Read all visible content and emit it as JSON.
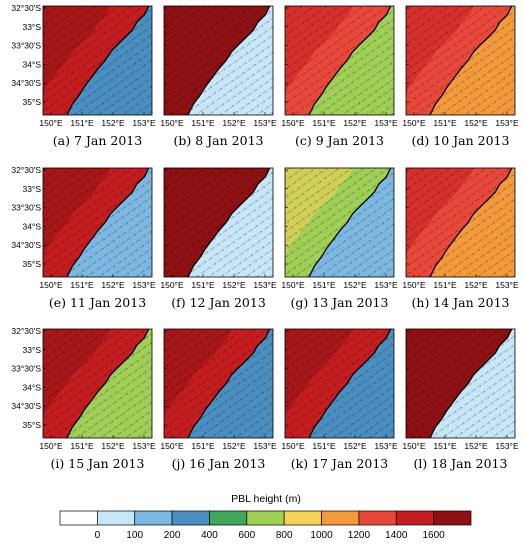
{
  "colorbar": {
    "title": "PBL height  (m)",
    "tick_labels": [
      "0",
      "100",
      "200",
      "400",
      "600",
      "800",
      "1000",
      "1200",
      "1400",
      "1600"
    ],
    "colors": [
      "#ffffff",
      "#c7e6f8",
      "#7db8e2",
      "#4a8fc0",
      "#3fa65a",
      "#9fcf57",
      "#f7d05a",
      "#f39a3c",
      "#e8483a",
      "#c41d20",
      "#8f1014"
    ]
  },
  "axes": {
    "lat_labels": [
      "32°30'S",
      "33°S",
      "33°30'S",
      "34°S",
      "34°30'S",
      "35°S"
    ],
    "lon_labels": [
      "150°E",
      "151°E",
      "152°E",
      "153°E"
    ]
  },
  "panels": [
    {
      "caption": "(a) 7 Jan 2013",
      "land": 9,
      "sea": 3
    },
    {
      "caption": "(b) 8 Jan 2013",
      "land": 10,
      "sea": 1
    },
    {
      "caption": "(c) 9 Jan 2013",
      "land": 8,
      "sea": 5
    },
    {
      "caption": "(d) 10 Jan 2013",
      "land": 8,
      "sea": 7
    },
    {
      "caption": "(e) 11 Jan 2013",
      "land": 9,
      "sea": 2
    },
    {
      "caption": "(f) 12 Jan 2013",
      "land": 10,
      "sea": 1
    },
    {
      "caption": "(g) 13 Jan 2013",
      "land": 5,
      "sea": 2
    },
    {
      "caption": "(h) 14 Jan 2013",
      "land": 8,
      "sea": 7
    },
    {
      "caption": "(i) 15 Jan 2013",
      "land": 9,
      "sea": 5
    },
    {
      "caption": "(j) 16 Jan 2013",
      "land": 9,
      "sea": 3
    },
    {
      "caption": "(k) 17 Jan 2013",
      "land": 9,
      "sea": 3
    },
    {
      "caption": "(l) 18 Jan 2013",
      "land": 10,
      "sea": 1
    }
  ]
}
